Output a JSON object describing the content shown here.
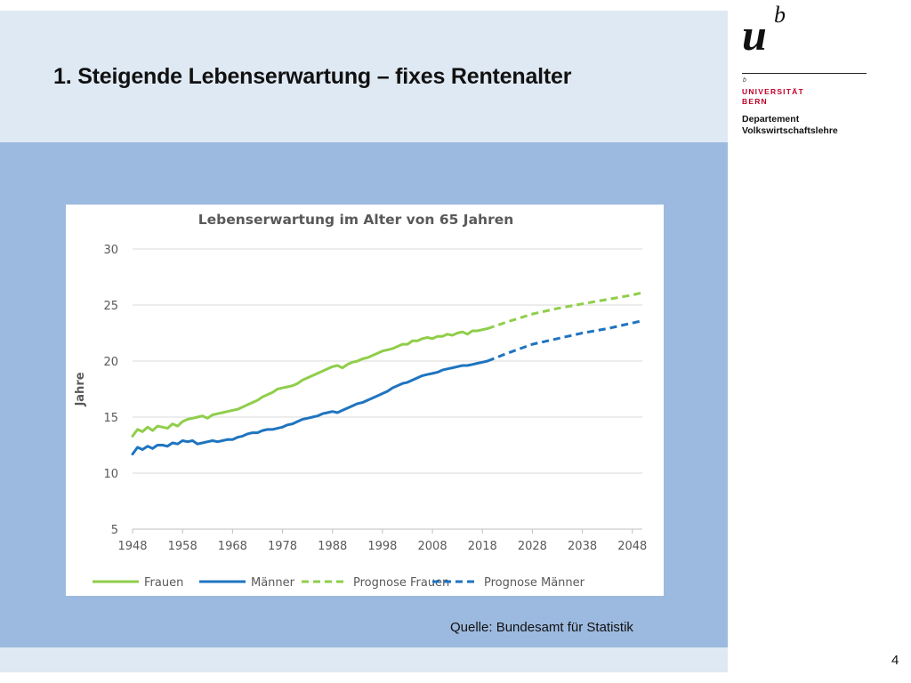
{
  "slide": {
    "title": "1. Steigende Lebenserwartung – fixes Rentenalter",
    "source": "Quelle: Bundesamt für Statistik",
    "page_number": "4"
  },
  "logo": {
    "u": "u",
    "b": "b",
    "small_b": "b",
    "university_line1": "UNIVERSITÄT",
    "university_line2": "BERN",
    "department_line1": "Departement",
    "department_line2": "Volkswirtschaftslehre"
  },
  "colors": {
    "header_band": "#dfe9f4",
    "main_band": "#9cbadf",
    "university_red": "#c0002a",
    "frauen": "#8fce4a",
    "maenner": "#1f74bf"
  },
  "chart_data": {
    "type": "line",
    "title": "Lebenserwartung im Alter von 65 Jahren",
    "xlabel": "",
    "ylabel": "Jahre",
    "xlim": [
      1948,
      2050
    ],
    "ylim": [
      5,
      30
    ],
    "xticks": [
      1948,
      1958,
      1968,
      1978,
      1988,
      1998,
      2008,
      2018,
      2028,
      2038,
      2048
    ],
    "yticks": [
      5,
      10,
      15,
      20,
      25,
      30
    ],
    "grid": "horizontal",
    "legend_position": "bottom",
    "series": [
      {
        "name": "Frauen",
        "style": "solid",
        "color": "#8fce4a",
        "x": [
          1948,
          1949,
          1950,
          1951,
          1952,
          1953,
          1954,
          1955,
          1956,
          1957,
          1958,
          1959,
          1960,
          1961,
          1962,
          1963,
          1964,
          1965,
          1966,
          1967,
          1968,
          1969,
          1970,
          1971,
          1972,
          1973,
          1974,
          1975,
          1976,
          1977,
          1978,
          1979,
          1980,
          1981,
          1982,
          1983,
          1984,
          1985,
          1986,
          1987,
          1988,
          1989,
          1990,
          1991,
          1992,
          1993,
          1994,
          1995,
          1996,
          1997,
          1998,
          1999,
          2000,
          2001,
          2002,
          2003,
          2004,
          2005,
          2006,
          2007,
          2008,
          2009,
          2010,
          2011,
          2012,
          2013,
          2014,
          2015,
          2016,
          2017,
          2018,
          2019
        ],
        "y": [
          13.3,
          13.9,
          13.7,
          14.1,
          13.8,
          14.2,
          14.1,
          14.0,
          14.4,
          14.2,
          14.6,
          14.8,
          14.9,
          15.0,
          15.1,
          14.9,
          15.2,
          15.3,
          15.4,
          15.5,
          15.6,
          15.7,
          15.9,
          16.1,
          16.3,
          16.5,
          16.8,
          17.0,
          17.2,
          17.5,
          17.6,
          17.7,
          17.8,
          18.0,
          18.3,
          18.5,
          18.7,
          18.9,
          19.1,
          19.3,
          19.5,
          19.6,
          19.4,
          19.7,
          19.9,
          20.0,
          20.2,
          20.3,
          20.5,
          20.7,
          20.9,
          21.0,
          21.1,
          21.3,
          21.5,
          21.5,
          21.8,
          21.8,
          22.0,
          22.1,
          22.0,
          22.2,
          22.2,
          22.4,
          22.3,
          22.5,
          22.6,
          22.4,
          22.7,
          22.7,
          22.8,
          22.9
        ]
      },
      {
        "name": "Männer",
        "style": "solid",
        "color": "#1f74bf",
        "x": [
          1948,
          1949,
          1950,
          1951,
          1952,
          1953,
          1954,
          1955,
          1956,
          1957,
          1958,
          1959,
          1960,
          1961,
          1962,
          1963,
          1964,
          1965,
          1966,
          1967,
          1968,
          1969,
          1970,
          1971,
          1972,
          1973,
          1974,
          1975,
          1976,
          1977,
          1978,
          1979,
          1980,
          1981,
          1982,
          1983,
          1984,
          1985,
          1986,
          1987,
          1988,
          1989,
          1990,
          1991,
          1992,
          1993,
          1994,
          1995,
          1996,
          1997,
          1998,
          1999,
          2000,
          2001,
          2002,
          2003,
          2004,
          2005,
          2006,
          2007,
          2008,
          2009,
          2010,
          2011,
          2012,
          2013,
          2014,
          2015,
          2016,
          2017,
          2018,
          2019
        ],
        "y": [
          11.7,
          12.3,
          12.1,
          12.4,
          12.2,
          12.5,
          12.5,
          12.4,
          12.7,
          12.6,
          12.9,
          12.8,
          12.9,
          12.6,
          12.7,
          12.8,
          12.9,
          12.8,
          12.9,
          13.0,
          13.0,
          13.2,
          13.3,
          13.5,
          13.6,
          13.6,
          13.8,
          13.9,
          13.9,
          14.0,
          14.1,
          14.3,
          14.4,
          14.6,
          14.8,
          14.9,
          15.0,
          15.1,
          15.3,
          15.4,
          15.5,
          15.4,
          15.6,
          15.8,
          16.0,
          16.2,
          16.3,
          16.5,
          16.7,
          16.9,
          17.1,
          17.3,
          17.6,
          17.8,
          18.0,
          18.1,
          18.3,
          18.5,
          18.7,
          18.8,
          18.9,
          19.0,
          19.2,
          19.3,
          19.4,
          19.5,
          19.6,
          19.6,
          19.7,
          19.8,
          19.9,
          20.0
        ]
      },
      {
        "name": "Prognose Frauen",
        "style": "dashed",
        "color": "#8fce4a",
        "x": [
          2019,
          2023,
          2028,
          2033,
          2038,
          2043,
          2048,
          2050
        ],
        "y": [
          22.9,
          23.5,
          24.2,
          24.7,
          25.1,
          25.5,
          25.9,
          26.1
        ]
      },
      {
        "name": "Prognose Männer",
        "style": "dashed",
        "color": "#1f74bf",
        "x": [
          2019,
          2023,
          2028,
          2033,
          2038,
          2043,
          2048,
          2050
        ],
        "y": [
          20.0,
          20.7,
          21.5,
          22.0,
          22.5,
          22.9,
          23.4,
          23.6
        ]
      }
    ]
  }
}
